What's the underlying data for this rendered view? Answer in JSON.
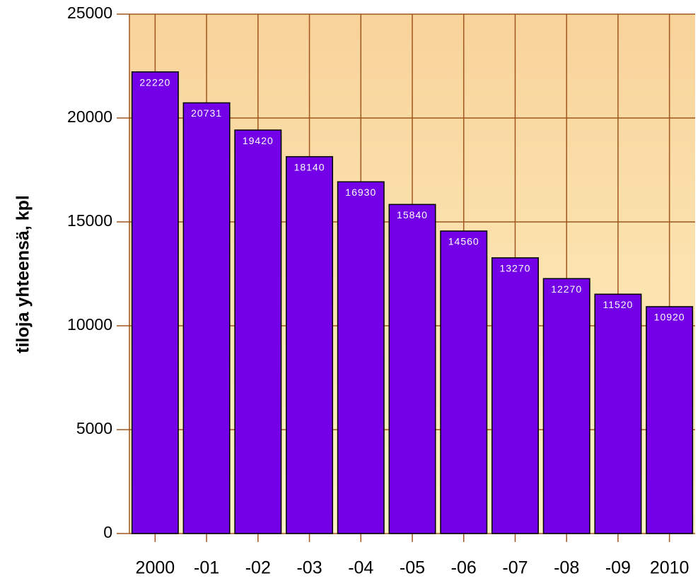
{
  "chart_data": {
    "type": "bar",
    "y_label": "tiloja yhteensä, kpl",
    "categories": [
      "2000",
      "-01",
      "-02",
      "-03",
      "-04",
      "-05",
      "-06",
      "-07",
      "-08",
      "-09",
      "2010"
    ],
    "values": [
      22220,
      20731,
      19420,
      18140,
      16930,
      15840,
      14560,
      13270,
      12270,
      11520,
      10920
    ],
    "color": "#7300e6",
    "ylim": [
      0,
      25000
    ],
    "yticks": [
      0,
      5000,
      10000,
      15000,
      20000,
      25000
    ],
    "grid": true
  }
}
